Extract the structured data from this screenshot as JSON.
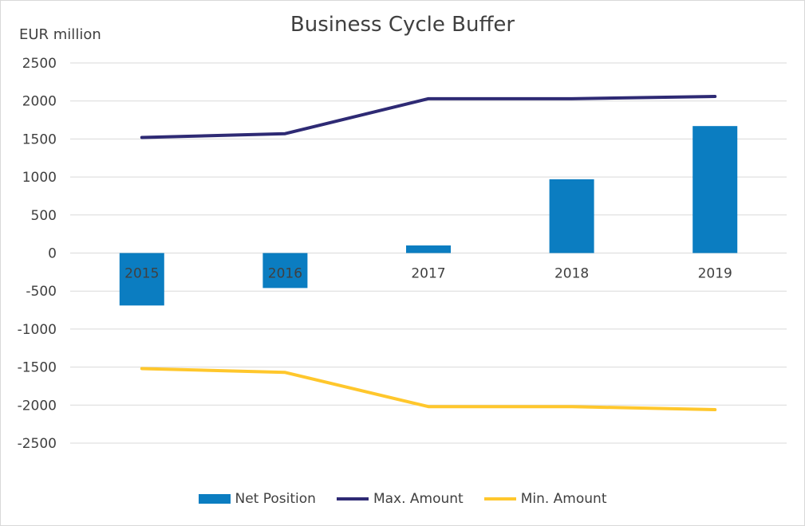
{
  "chart_data": {
    "type": "bar+line",
    "title": "Business Cycle Buffer",
    "ylabel": "EUR million",
    "xlabel": "",
    "ylim": [
      -2500,
      2500
    ],
    "yticks": [
      2500,
      2000,
      1500,
      1000,
      500,
      0,
      -500,
      -1000,
      -1500,
      -2000,
      -2500
    ],
    "categories": [
      "2015",
      "2016",
      "2017",
      "2018",
      "2019"
    ],
    "grid": true,
    "legend_position": "bottom",
    "series": [
      {
        "name": "Net Position",
        "kind": "bar",
        "color": "#0B7DC1",
        "values": [
          -690,
          -460,
          100,
          970,
          1670
        ]
      },
      {
        "name": "Max. Amount",
        "kind": "line",
        "color": "#2E2A74",
        "values": [
          1520,
          1570,
          2030,
          2030,
          2060
        ]
      },
      {
        "name": "Min. Amount",
        "kind": "line",
        "color": "#FFC72C",
        "values": [
          -1520,
          -1570,
          -2020,
          -2020,
          -2060
        ]
      }
    ]
  }
}
